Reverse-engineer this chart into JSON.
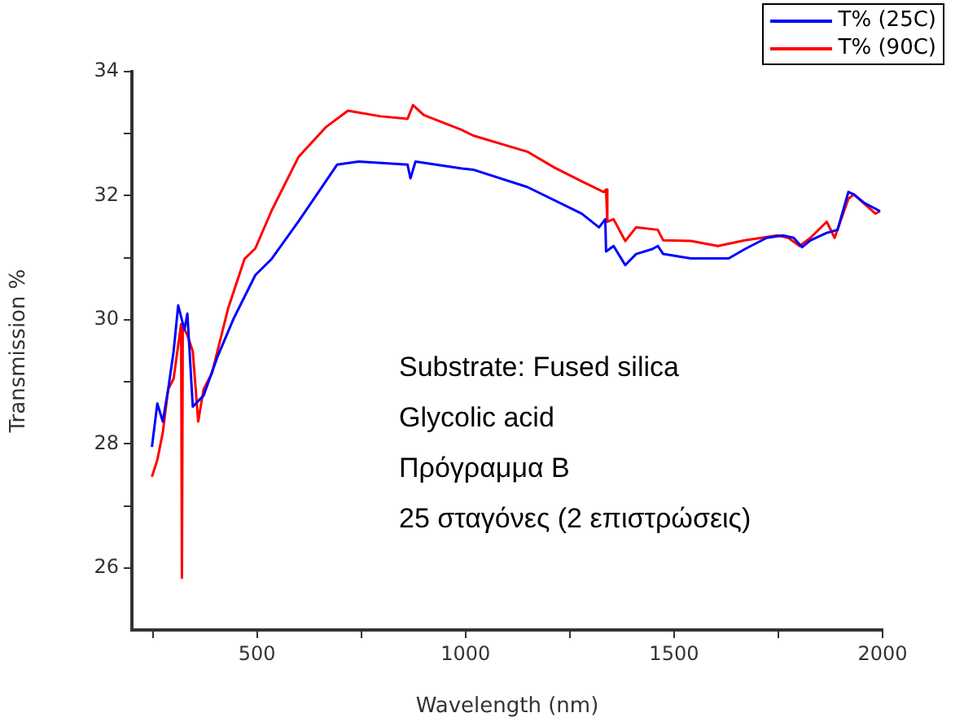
{
  "chart_data": {
    "type": "line",
    "xlabel": "Wavelength (nm)",
    "ylabel": "Transmission %",
    "legend": "top right",
    "line_style": "solid",
    "marker": "none",
    "grid": false,
    "xlim": [
      200,
      2000
    ],
    "xticks": [
      {
        "value": 250,
        "label": null
      },
      500,
      {
        "value": 750,
        "label": null
      },
      1000,
      {
        "value": 1250,
        "label": null
      },
      1500,
      {
        "value": 1750,
        "label": null
      },
      2000
    ],
    "ylim": [
      25,
      34
    ],
    "yticks": [
      26,
      {
        "value": 27,
        "label": null
      },
      28,
      {
        "value": 29,
        "label": null
      },
      30,
      {
        "value": 31,
        "label": null
      },
      32,
      {
        "value": 33,
        "label": null
      },
      34
    ],
    "annotations": [
      "Substrate: Fused silica",
      "Glycolic acid",
      "Πρόγραμμα Β",
      "25 σταγόνες (2 επιστρώσεις)"
    ],
    "series": [
      {
        "name": "T% (25C)",
        "color": "#0000ff",
        "x": [
          248,
          261,
          274,
          287,
          300,
          311,
          326,
          333,
          346,
          372,
          405,
          444,
          496,
          535,
          600,
          692,
          744,
          861,
          868,
          880,
          991,
          1018,
          1148,
          1279,
          1320,
          1335,
          1337,
          1355,
          1383,
          1409,
          1448,
          1461,
          1474,
          1540,
          1631,
          1670,
          1722,
          1761,
          1787,
          1807,
          1827,
          1866,
          1892,
          1918,
          1931,
          1957,
          1994
        ],
        "values": [
          27.95,
          28.65,
          28.36,
          28.88,
          29.49,
          30.23,
          29.84,
          30.1,
          28.6,
          28.78,
          29.4,
          30.02,
          30.72,
          30.98,
          31.59,
          32.5,
          32.55,
          32.5,
          32.28,
          32.55,
          32.44,
          32.42,
          32.14,
          31.71,
          31.49,
          31.62,
          31.1,
          31.19,
          30.88,
          31.06,
          31.14,
          31.19,
          31.06,
          30.99,
          30.99,
          31.14,
          31.32,
          31.36,
          31.32,
          31.17,
          31.28,
          31.4,
          31.45,
          32.06,
          32.02,
          31.88,
          31.75
        ]
      },
      {
        "name": "T% (90C)",
        "color": "#ff0000",
        "x": [
          248,
          261,
          274,
          287,
          300,
          318,
          320,
          322,
          333,
          346,
          359,
          372,
          392,
          431,
          470,
          496,
          535,
          600,
          666,
          718,
          796,
          861,
          874,
          900,
          991,
          1018,
          1148,
          1214,
          1279,
          1331,
          1337,
          1340,
          1355,
          1383,
          1409,
          1461,
          1474,
          1540,
          1605,
          1670,
          1748,
          1774,
          1801,
          1827,
          1866,
          1885,
          1918,
          1931,
          1983,
          1994
        ],
        "values": [
          27.47,
          27.74,
          28.18,
          28.88,
          29.05,
          29.93,
          25.84,
          29.9,
          29.75,
          29.49,
          28.36,
          28.88,
          29.14,
          30.19,
          30.98,
          31.15,
          31.76,
          32.63,
          33.11,
          33.37,
          33.28,
          33.24,
          33.46,
          33.3,
          33.06,
          32.97,
          32.71,
          32.45,
          32.23,
          32.06,
          32.1,
          31.58,
          31.62,
          31.27,
          31.49,
          31.45,
          31.28,
          31.27,
          31.19,
          31.28,
          31.36,
          31.32,
          31.19,
          31.32,
          31.58,
          31.32,
          31.95,
          32.02,
          31.71,
          31.75
        ]
      }
    ]
  }
}
